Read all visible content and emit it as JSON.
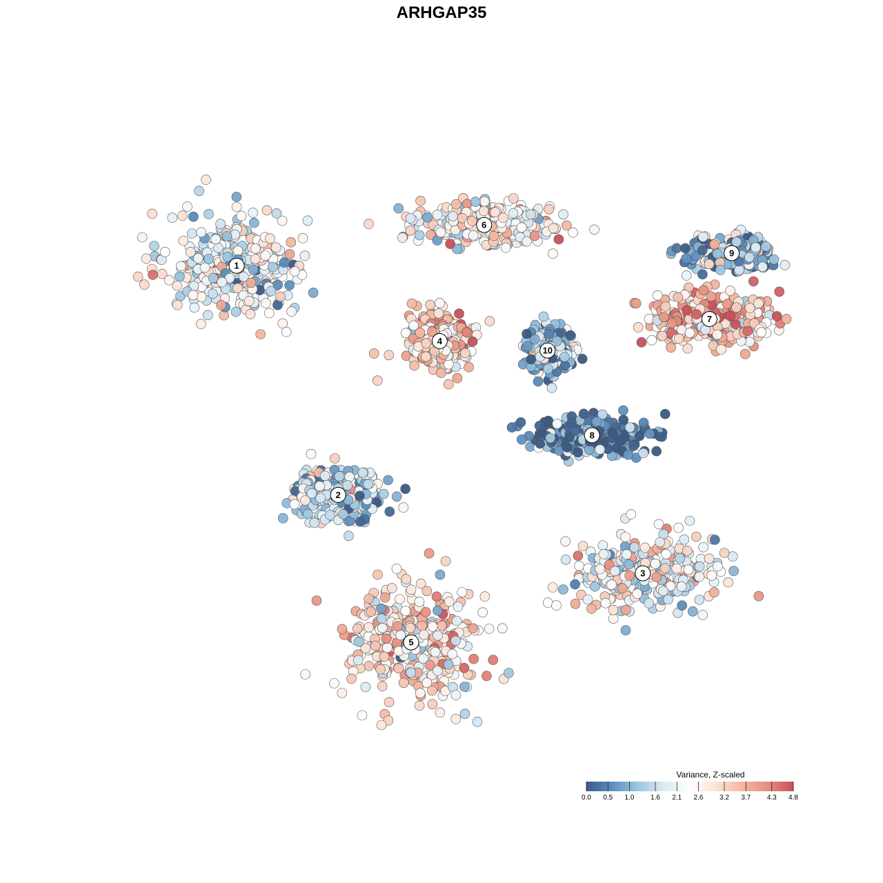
{
  "chart_data": {
    "type": "scatter",
    "title": "ARHGAP35",
    "xlabel": "",
    "ylabel": "",
    "grid": false,
    "legend": {
      "title": "Variance, Z-scaled",
      "placement": "bottom-right",
      "range": [
        0.0,
        4.8
      ],
      "ticks": [
        "0.0",
        "0.5",
        "1.0",
        "1.6",
        "2.1",
        "2.6",
        "3.2",
        "3.7",
        "4.3",
        "4.8"
      ],
      "tick_values": [
        0.0,
        0.5,
        1.0,
        1.6,
        2.1,
        2.6,
        3.2,
        3.7,
        4.3,
        4.8
      ],
      "colors": [
        "#3b5a83",
        "#5b8fc0",
        "#9cc6e0",
        "#dceaf3",
        "#ffffff",
        "#fbe3d7",
        "#f3b8a0",
        "#e88e80",
        "#c8505a"
      ]
    },
    "clusters": [
      {
        "label": "1",
        "x": -0.7,
        "y": 0.56,
        "spread_x": 0.22,
        "spread_y": 0.17,
        "mean_value": 2.2
      },
      {
        "label": "2",
        "x": -0.38,
        "y": -0.17,
        "spread_x": 0.14,
        "spread_y": 0.09,
        "mean_value": 1.6
      },
      {
        "label": "3",
        "x": 0.58,
        "y": -0.42,
        "spread_x": 0.22,
        "spread_y": 0.12,
        "mean_value": 2.4
      },
      {
        "label": "4",
        "x": -0.06,
        "y": 0.32,
        "spread_x": 0.1,
        "spread_y": 0.09,
        "mean_value": 3.3
      },
      {
        "label": "5",
        "x": -0.15,
        "y": -0.64,
        "spread_x": 0.22,
        "spread_y": 0.2,
        "mean_value": 2.9
      },
      {
        "label": "6",
        "x": 0.08,
        "y": 0.69,
        "spread_x": 0.22,
        "spread_y": 0.07,
        "mean_value": 2.5
      },
      {
        "label": "7",
        "x": 0.79,
        "y": 0.39,
        "spread_x": 0.22,
        "spread_y": 0.08,
        "mean_value": 3.4
      },
      {
        "label": "8",
        "x": 0.42,
        "y": 0.02,
        "spread_x": 0.18,
        "spread_y": 0.06,
        "mean_value": 0.4
      },
      {
        "label": "9",
        "x": 0.86,
        "y": 0.6,
        "spread_x": 0.14,
        "spread_y": 0.05,
        "mean_value": 1.3
      },
      {
        "label": "10",
        "x": 0.28,
        "y": 0.29,
        "spread_x": 0.07,
        "spread_y": 0.07,
        "mean_value": 1.3
      }
    ]
  }
}
